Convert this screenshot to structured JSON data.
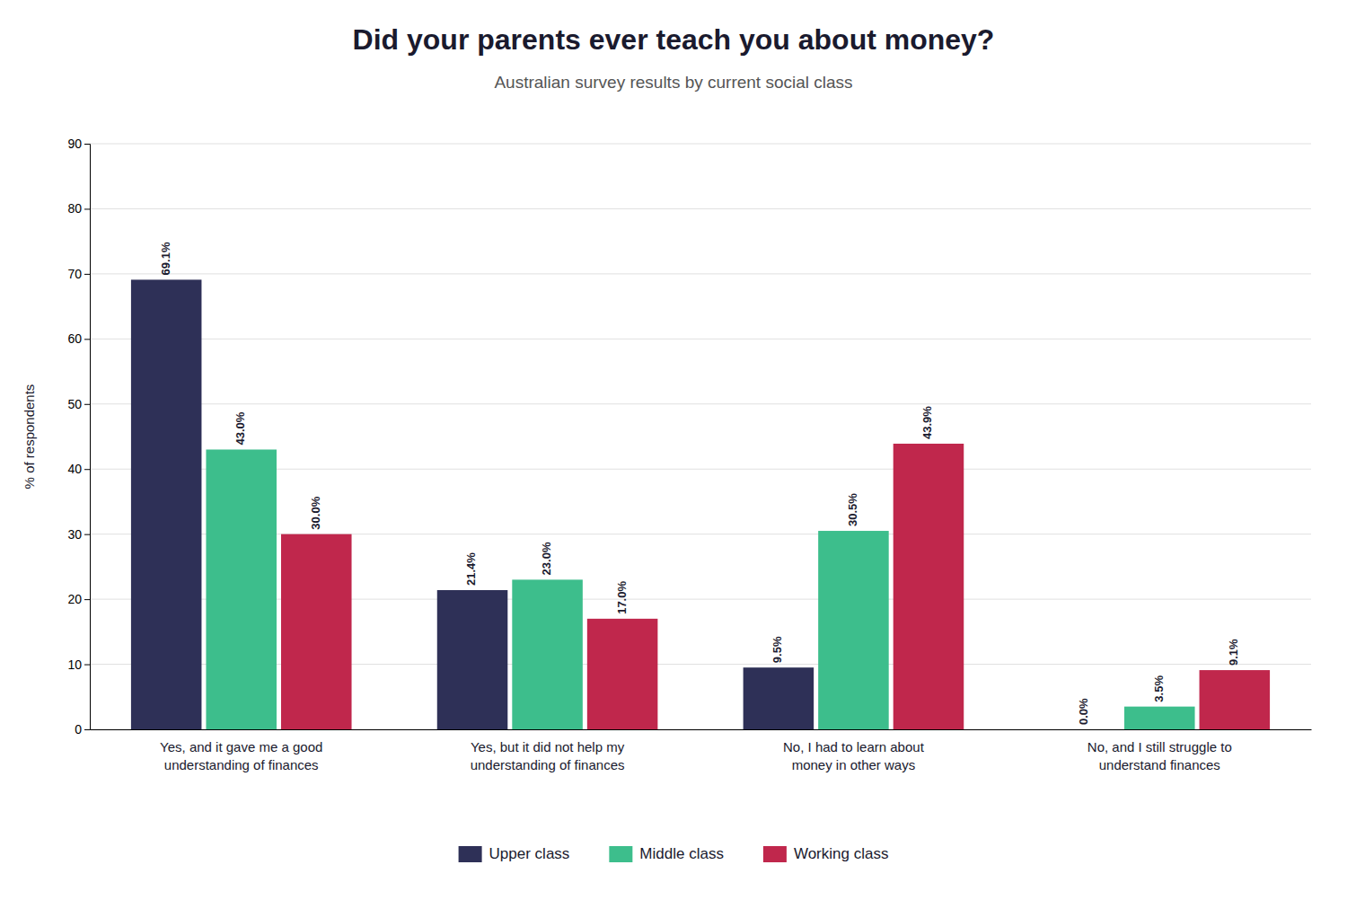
{
  "chart_data": {
    "type": "bar",
    "title": "Did your parents ever teach you about money?",
    "subtitle": "Australian survey results by current social class",
    "ylabel": "% of respondents",
    "categories": [
      "Yes, and it gave me a good\nunderstanding of finances",
      "Yes, but it did not help my\nunderstanding of finances",
      "No, I had to learn about\nmoney in other ways",
      "No, and I still struggle to\nunderstand finances"
    ],
    "series": [
      {
        "name": "Upper class",
        "color": "#2E3057",
        "values": [
          69.1,
          21.4,
          9.5,
          0.0
        ],
        "value_labels": [
          "69.1%",
          "21.4%",
          "9.5%",
          "0.0%"
        ]
      },
      {
        "name": "Middle class",
        "color": "#3DBE8C",
        "values": [
          43.0,
          23.0,
          30.5,
          3.5
        ],
        "value_labels": [
          "43.0%",
          "23.0%",
          "30.5%",
          "3.5%"
        ]
      },
      {
        "name": "Working class",
        "color": "#C0274C",
        "values": [
          30.0,
          17.0,
          43.9,
          9.1
        ],
        "value_labels": [
          "30.0%",
          "17.0%",
          "43.9%",
          "9.1%"
        ]
      }
    ],
    "ylim": [
      0,
      90
    ],
    "yticks": [
      0,
      10,
      20,
      30,
      40,
      50,
      60,
      70,
      80,
      90
    ],
    "grid": true,
    "legend": "bottom",
    "data_labels": true
  }
}
